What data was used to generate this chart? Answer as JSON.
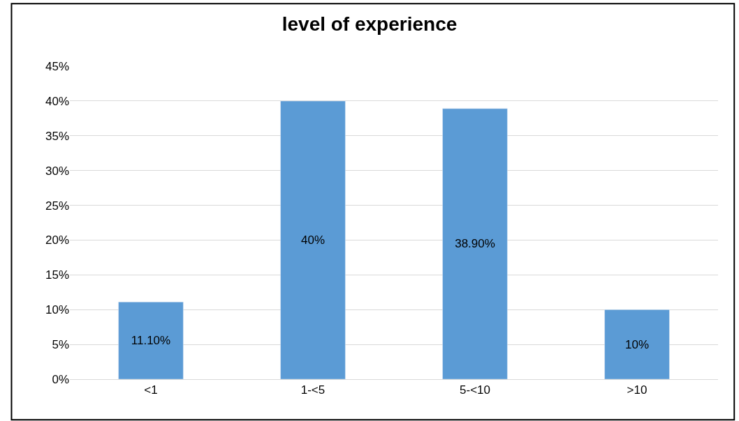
{
  "chart_data": {
    "type": "bar",
    "title": "level of experience",
    "categories": [
      "<1",
      "1-<5",
      "5-<10",
      ">10"
    ],
    "values": [
      11.1,
      40,
      38.9,
      10
    ],
    "value_labels": [
      "11.10%",
      "40%",
      "38.90%",
      "10%"
    ],
    "color": "#5b9bd5",
    "ylim": [
      0,
      45
    ],
    "yticks": [
      {
        "value": 0,
        "label": "0%"
      },
      {
        "value": 5,
        "label": "5%"
      },
      {
        "value": 10,
        "label": "10%"
      },
      {
        "value": 15,
        "label": "15%"
      },
      {
        "value": 20,
        "label": "20%"
      },
      {
        "value": 25,
        "label": "25%"
      },
      {
        "value": 30,
        "label": "30%"
      },
      {
        "value": 35,
        "label": "35%"
      },
      {
        "value": 40,
        "label": "40%"
      },
      {
        "value": 45,
        "label": "45%"
      }
    ],
    "grid": "y",
    "legend": false
  }
}
